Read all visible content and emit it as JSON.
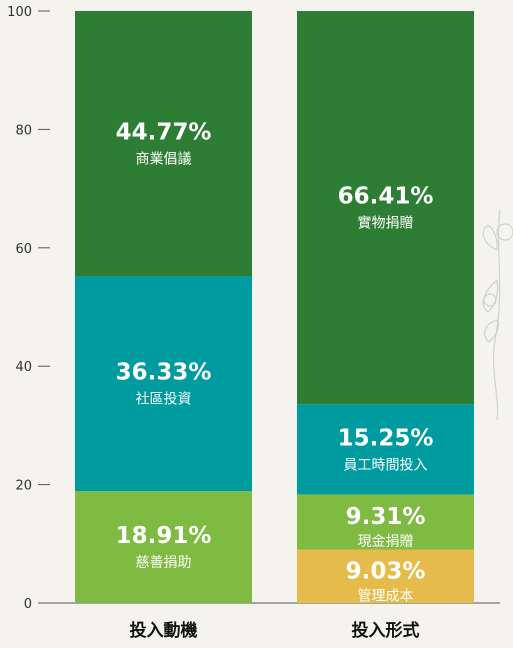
{
  "chart_data": {
    "type": "bar",
    "stacked": true,
    "ylim": [
      0,
      100
    ],
    "yticks": [
      "0",
      "20",
      "40",
      "60",
      "80",
      "100"
    ],
    "grid": false,
    "categories": [
      "投入動機",
      "投入形式"
    ],
    "stacks": [
      {
        "category": "投入動機",
        "segments": [
          {
            "name": "慈善捐助",
            "value": 18.91,
            "label": "18.91%",
            "color": "#7fba42"
          },
          {
            "name": "社區投資",
            "value": 36.33,
            "label": "36.33%",
            "color": "#009b9f"
          },
          {
            "name": "商業倡議",
            "value": 44.77,
            "label": "44.77%",
            "color": "#2e7d34"
          }
        ]
      },
      {
        "category": "投入形式",
        "segments": [
          {
            "name": "管理成本",
            "value": 9.03,
            "label": "9.03%",
            "color": "#e5bb4b"
          },
          {
            "name": "現金捐贈",
            "value": 9.31,
            "label": "9.31%",
            "color": "#7fba42"
          },
          {
            "name": "員工時間投入",
            "value": 15.25,
            "label": "15.25%",
            "color": "#009b9f"
          },
          {
            "name": "實物捐贈",
            "value": 66.41,
            "label": "66.41%",
            "color": "#2e7d34"
          }
        ]
      }
    ]
  }
}
